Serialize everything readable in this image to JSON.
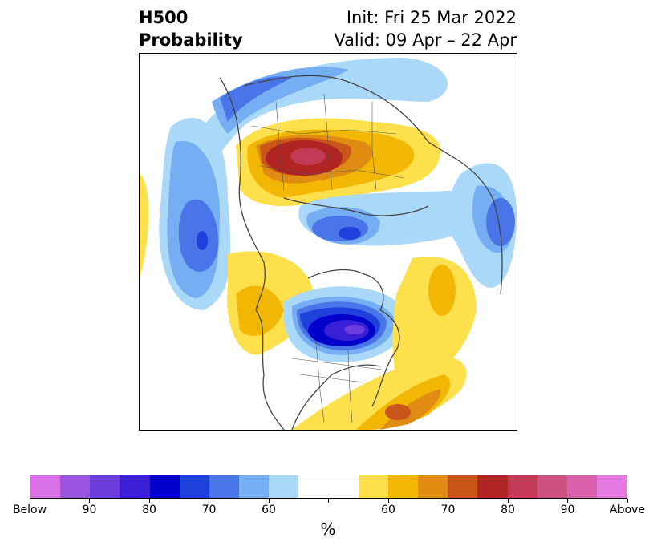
{
  "title": {
    "left_line1": "H500",
    "left_line2": "Probability",
    "right_line1": "Init: Fri 25 Mar 2022",
    "right_line2": "Valid: 09 Apr – 22 Apr"
  },
  "colorbar": {
    "unit": "%",
    "colors": [
      "#da70e6",
      "#9955e0",
      "#6a3ddc",
      "#3a1fd6",
      "#0000cc",
      "#2040dd",
      "#4a75e8",
      "#75aef2",
      "#aad8f8",
      "#ffffff",
      "#ffffff",
      "#fee04c",
      "#f2b705",
      "#e08c12",
      "#c95518",
      "#b02424",
      "#c23a55",
      "#cc5080",
      "#d860a8",
      "#e47ae0"
    ],
    "labels": [
      "Below",
      "90",
      "80",
      "70",
      "60",
      "",
      "60",
      "70",
      "80",
      "90",
      "Above"
    ]
  }
}
